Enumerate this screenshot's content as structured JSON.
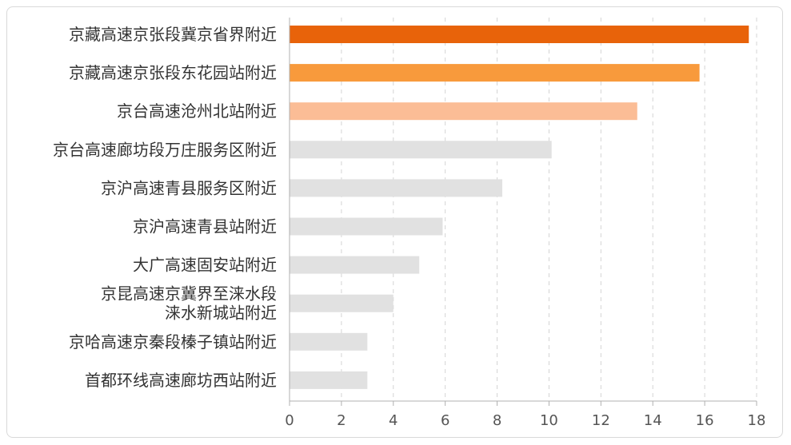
{
  "chart_data": {
    "type": "bar",
    "orientation": "horizontal",
    "categories": [
      "京藏高速京张段冀京省界附近",
      "京藏高速京张段东花园站附近",
      "京台高速沧州北站附近",
      "京台高速廊坊段万庄服务区附近",
      "京沪高速青县服务区附近",
      "京沪高速青县站附近",
      "大广高速固安站附近",
      "京昆高速京冀界至涞水段\n涞水新城站附近",
      "京哈高速京秦段榛子镇站附近",
      "首都环线高速廊坊西站附近"
    ],
    "values": [
      17.7,
      15.8,
      13.4,
      10.1,
      8.2,
      5.9,
      5.0,
      4.0,
      3.0,
      3.0
    ],
    "bar_colors": [
      "#e8630a",
      "#f89a3c",
      "#fbbd96",
      "#e1e1e1",
      "#e1e1e1",
      "#e1e1e1",
      "#e1e1e1",
      "#e1e1e1",
      "#e1e1e1",
      "#e1e1e1"
    ],
    "xlim": [
      0,
      18
    ],
    "xticks": [
      0,
      2,
      4,
      6,
      8,
      10,
      12,
      14,
      16,
      18
    ],
    "grid": "vertical-dashed",
    "title": "",
    "xlabel": "",
    "ylabel": ""
  },
  "colors": {
    "grid": "#d4d4d4",
    "axis": "#b0b0b0",
    "frame": "#d9d9d9"
  }
}
